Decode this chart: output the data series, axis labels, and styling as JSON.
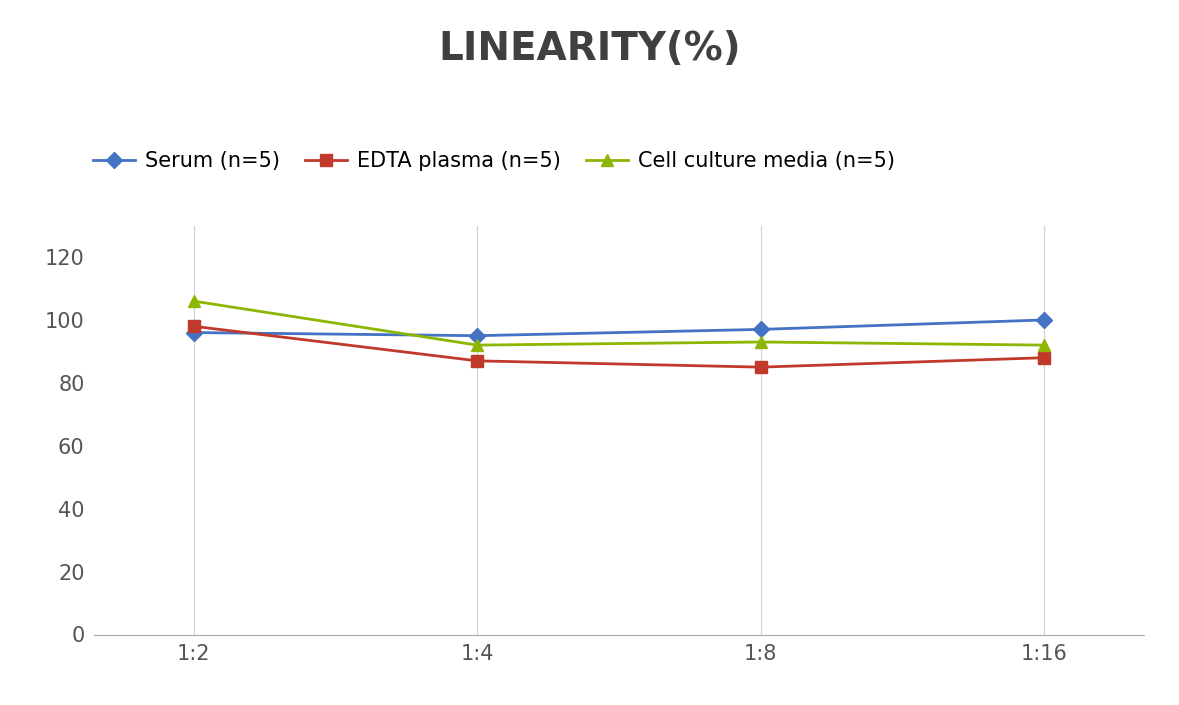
{
  "title": "LINEARITY(%)",
  "title_fontsize": 28,
  "title_fontweight": "bold",
  "title_color": "#404040",
  "x_labels": [
    "1:2",
    "1:4",
    "1:8",
    "1:16"
  ],
  "x_values": [
    0,
    1,
    2,
    3
  ],
  "series": [
    {
      "label": "Serum (n=5)",
      "values": [
        96,
        95,
        97,
        100
      ],
      "color": "#4472C4",
      "marker": "D",
      "marker_size": 8,
      "linewidth": 2
    },
    {
      "label": "EDTA plasma (n=5)",
      "values": [
        98,
        87,
        85,
        88
      ],
      "color": "#C0392B",
      "marker": "s",
      "marker_size": 8,
      "linewidth": 2
    },
    {
      "label": "Cell culture media (n=5)",
      "values": [
        106,
        92,
        93,
        92
      ],
      "color": "#8DB600",
      "marker": "^",
      "marker_size": 9,
      "linewidth": 2
    }
  ],
  "ylim": [
    0,
    130
  ],
  "yticks": [
    0,
    20,
    40,
    60,
    80,
    100,
    120
  ],
  "legend_fontsize": 15,
  "background_color": "#ffffff",
  "grid_color": "#d5d5d5",
  "tick_labelsize": 15,
  "tick_color": "#555555",
  "figsize": [
    11.79,
    7.05
  ],
  "dpi": 100
}
